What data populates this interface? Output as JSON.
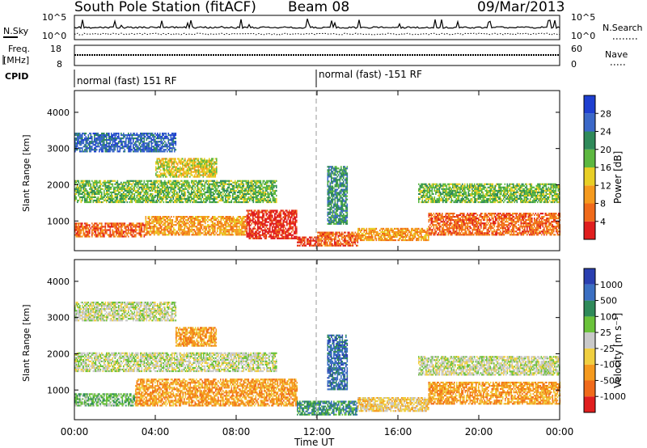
{
  "header": {
    "title": "South Pole Station (fitACF)",
    "beam": "Beam 08",
    "date": "09/Mar/2013"
  },
  "top_panels": {
    "nsky_label": "N.Sky",
    "nsearch_label": "N.Search",
    "noise_ticks": [
      "10^5",
      "10^0"
    ],
    "freq_label": "Freq.",
    "freq_unit": "[MHz]",
    "freq_ticks": [
      "18",
      "8"
    ],
    "nave_label": "Nave",
    "nave_ticks": [
      "60",
      "0"
    ],
    "cpid_label": "CPID",
    "cpid_segments": [
      {
        "label": "normal (fast) 151 RF",
        "start_hour": 0
      },
      {
        "label": "normal (fast) -151 RF",
        "start_hour": 12
      }
    ]
  },
  "chart_data": [
    {
      "type": "heatmap",
      "name_printed": "",
      "xlabel": "Time UT",
      "ylabel": "Slant Range [km]",
      "xlim": [
        0,
        24
      ],
      "ylim": [
        180,
        4600
      ],
      "x_ticks": [
        "00:00",
        "04:00",
        "08:00",
        "12:00",
        "16:00",
        "20:00",
        "00:00"
      ],
      "y_ticks": [
        1000,
        2000,
        3000,
        4000
      ],
      "colorbar": {
        "label": "Power [dB]",
        "ticks": [
          "28",
          "24",
          "20",
          "16",
          "12",
          "8",
          "4"
        ],
        "bins": [
          0,
          4,
          8,
          12,
          16,
          20,
          24,
          28,
          32
        ],
        "colors": [
          "#1e3fd0",
          "#3b68c8",
          "#2f8a5a",
          "#5db840",
          "#e8cf26",
          "#f59a1e",
          "#f06a1a",
          "#e01e1e"
        ]
      },
      "echo_bands": [
        {
          "x": [
            0,
            3.5
          ],
          "y": [
            550,
            950
          ],
          "level": 6
        },
        {
          "x": [
            3.5,
            8.5
          ],
          "y": [
            600,
            1100
          ],
          "level": 5
        },
        {
          "x": [
            8.5,
            11
          ],
          "y": [
            500,
            1300
          ],
          "level": 7
        },
        {
          "x": [
            11,
            12
          ],
          "y": [
            300,
            550
          ],
          "level": 7
        },
        {
          "x": [
            12,
            14
          ],
          "y": [
            300,
            700
          ],
          "level": 6
        },
        {
          "x": [
            14,
            17.5
          ],
          "y": [
            450,
            800
          ],
          "level": 5
        },
        {
          "x": [
            17.5,
            24
          ],
          "y": [
            600,
            1200
          ],
          "level": 6
        },
        {
          "x": [
            0,
            10
          ],
          "y": [
            1500,
            2100
          ],
          "level": 3
        },
        {
          "x": [
            4,
            7
          ],
          "y": [
            2200,
            2700
          ],
          "level": 4
        },
        {
          "x": [
            17,
            24
          ],
          "y": [
            1500,
            2000
          ],
          "level": 3
        },
        {
          "x": [
            0,
            5
          ],
          "y": [
            2900,
            3400
          ],
          "level": 1
        },
        {
          "x": [
            12.5,
            13.5
          ],
          "y": [
            900,
            2500
          ],
          "level": 2
        }
      ]
    },
    {
      "type": "heatmap",
      "name_printed": "",
      "xlabel": "Time UT",
      "ylabel": "Slant Range [km]",
      "xlim": [
        0,
        24
      ],
      "ylim": [
        180,
        4600
      ],
      "x_ticks": [
        "00:00",
        "04:00",
        "08:00",
        "12:00",
        "16:00",
        "20:00",
        "00:00"
      ],
      "y_ticks": [
        1000,
        2000,
        3000,
        4000
      ],
      "colorbar": {
        "label": "Velocity [m s⁻¹]",
        "ticks": [
          "1000",
          "500",
          "100",
          "25",
          "-25",
          "-100",
          "-500",
          "-1000"
        ],
        "bins": [
          1500,
          1000,
          500,
          100,
          25,
          -25,
          -100,
          -500,
          -1000,
          -1500
        ],
        "colors": [
          "#2a3fb0",
          "#3b6fc2",
          "#2f8a5a",
          "#6ac23a",
          "#c9c9c9",
          "#f0cf40",
          "#f59a1e",
          "#f06a1a",
          "#e01e1e"
        ]
      },
      "echo_bands": [
        {
          "x": [
            0,
            3
          ],
          "y": [
            550,
            900
          ],
          "level": 3
        },
        {
          "x": [
            3,
            11
          ],
          "y": [
            550,
            1300
          ],
          "level": 6
        },
        {
          "x": [
            0,
            10
          ],
          "y": [
            1500,
            2000
          ],
          "level": 4
        },
        {
          "x": [
            5,
            7
          ],
          "y": [
            2200,
            2700
          ],
          "level": 6
        },
        {
          "x": [
            11,
            14
          ],
          "y": [
            300,
            700
          ],
          "level": 2
        },
        {
          "x": [
            12.5,
            13.5
          ],
          "y": [
            1000,
            2500
          ],
          "level": 1
        },
        {
          "x": [
            14,
            17.5
          ],
          "y": [
            400,
            800
          ],
          "level": 5
        },
        {
          "x": [
            17.5,
            24
          ],
          "y": [
            600,
            1200
          ],
          "level": 6
        },
        {
          "x": [
            17,
            24
          ],
          "y": [
            1400,
            1900
          ],
          "level": 4
        },
        {
          "x": [
            0,
            5
          ],
          "y": [
            2900,
            3400
          ],
          "level": 4
        }
      ]
    }
  ]
}
